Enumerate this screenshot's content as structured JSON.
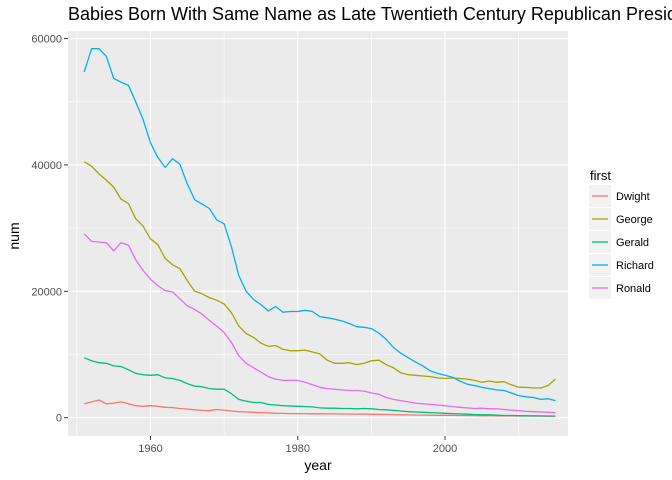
{
  "chart_data": {
    "type": "line",
    "title": "Babies Born With Same Name as Late Twentieth  Century Republican Presidents",
    "xlabel": "year",
    "ylabel": "num",
    "xlim": [
      1948.8,
      2016.7
    ],
    "ylim": [
      -2900,
      61200
    ],
    "x_ticks": [
      1960,
      1980,
      2000
    ],
    "x_tick_labels": [
      "1960",
      "1980",
      "2000"
    ],
    "y_ticks": [
      0,
      20000,
      40000,
      60000
    ],
    "y_tick_labels": [
      "0",
      "20000",
      "40000",
      "60000"
    ],
    "grid": true,
    "background": "#ebebeb",
    "legend": {
      "title": "first",
      "position": "right"
    },
    "x": [
      1951,
      1952,
      1953,
      1954,
      1955,
      1956,
      1957,
      1958,
      1959,
      1960,
      1961,
      1962,
      1963,
      1964,
      1965,
      1966,
      1967,
      1968,
      1969,
      1970,
      1971,
      1972,
      1973,
      1974,
      1975,
      1976,
      1977,
      1978,
      1979,
      1980,
      1981,
      1982,
      1983,
      1984,
      1985,
      1986,
      1987,
      1988,
      1989,
      1990,
      1991,
      1992,
      1993,
      1994,
      1995,
      1996,
      1997,
      1998,
      1999,
      2000,
      2001,
      2002,
      2003,
      2004,
      2005,
      2006,
      2007,
      2008,
      2009,
      2010,
      2011,
      2012,
      2013,
      2014,
      2015
    ],
    "series": [
      {
        "name": "Dwight",
        "color": "#f8766d",
        "values": [
          2200,
          2500,
          2800,
          2200,
          2300,
          2500,
          2200,
          1900,
          1800,
          1900,
          1800,
          1650,
          1600,
          1450,
          1350,
          1250,
          1150,
          1100,
          1300,
          1200,
          1050,
          950,
          900,
          850,
          800,
          750,
          700,
          680,
          650,
          650,
          640,
          620,
          610,
          600,
          590,
          580,
          570,
          560,
          550,
          540,
          520,
          500,
          480,
          460,
          440,
          420,
          400,
          390,
          380,
          370,
          360,
          350,
          340,
          330,
          320,
          310,
          300,
          290,
          280,
          270,
          260,
          250,
          250,
          240,
          240
        ]
      },
      {
        "name": "George",
        "color": "#a3a500",
        "values": [
          40500,
          39800,
          38600,
          37600,
          36500,
          34600,
          33900,
          31500,
          30300,
          28300,
          27400,
          25200,
          24200,
          23600,
          21700,
          20000,
          19600,
          19000,
          18600,
          18000,
          16600,
          14500,
          13300,
          12700,
          11800,
          11300,
          11400,
          10800,
          10600,
          10600,
          10700,
          10400,
          10100,
          9100,
          8600,
          8600,
          8700,
          8400,
          8600,
          9000,
          9100,
          8400,
          7900,
          7100,
          6800,
          6700,
          6600,
          6500,
          6300,
          6200,
          6300,
          6200,
          6100,
          5900,
          5600,
          5800,
          5600,
          5700,
          5200,
          4800,
          4800,
          4700,
          4700,
          5100,
          6100
        ]
      },
      {
        "name": "Gerald",
        "color": "#00bf7d",
        "values": [
          9500,
          9000,
          8700,
          8600,
          8200,
          8100,
          7600,
          7000,
          6800,
          6700,
          6800,
          6300,
          6200,
          5900,
          5400,
          5000,
          4900,
          4600,
          4500,
          4500,
          3800,
          2900,
          2600,
          2400,
          2400,
          2100,
          2000,
          1900,
          1850,
          1800,
          1750,
          1700,
          1550,
          1500,
          1500,
          1450,
          1450,
          1400,
          1450,
          1400,
          1300,
          1250,
          1150,
          1050,
          950,
          900,
          850,
          800,
          750,
          700,
          650,
          600,
          550,
          500,
          450,
          450,
          400,
          350,
          350,
          320,
          300,
          290,
          280,
          270,
          260
        ]
      },
      {
        "name": "Richard",
        "color": "#00b0f6",
        "values": [
          54700,
          58400,
          58400,
          57200,
          53700,
          53100,
          52600,
          50000,
          47200,
          43500,
          41200,
          39600,
          41000,
          40100,
          37000,
          34500,
          33800,
          33100,
          31300,
          30700,
          27000,
          22500,
          20000,
          18700,
          17900,
          16900,
          17600,
          16700,
          16800,
          16800,
          17000,
          16800,
          16000,
          15800,
          15600,
          15300,
          14900,
          14400,
          14300,
          14100,
          13400,
          12400,
          11100,
          10200,
          9500,
          8800,
          8200,
          7400,
          7000,
          6700,
          6400,
          5800,
          5300,
          5100,
          4800,
          4600,
          4400,
          4300,
          3900,
          3500,
          3300,
          3200,
          2900,
          3000,
          2700
        ]
      },
      {
        "name": "Ronald",
        "color": "#e76bf3",
        "values": [
          29100,
          27900,
          27800,
          27700,
          26400,
          27700,
          27300,
          25000,
          23300,
          21900,
          20900,
          20100,
          19900,
          18800,
          17700,
          17100,
          16400,
          15400,
          14500,
          13500,
          11900,
          9800,
          8600,
          7900,
          7200,
          6500,
          6100,
          5900,
          5900,
          5900,
          5600,
          5200,
          4800,
          4600,
          4500,
          4400,
          4300,
          4300,
          4200,
          3900,
          3700,
          3200,
          2900,
          2700,
          2500,
          2300,
          2200,
          2100,
          2000,
          1900,
          1750,
          1650,
          1550,
          1450,
          1500,
          1400,
          1400,
          1300,
          1200,
          1100,
          1000,
          950,
          900,
          850,
          800
        ]
      }
    ]
  }
}
